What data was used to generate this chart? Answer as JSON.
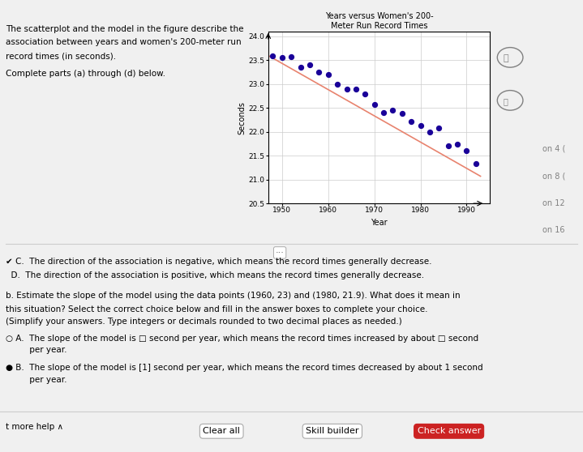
{
  "title": "Years versus Women's 200-\nMeter Run Record Times",
  "xlabel": "Year",
  "ylabel": "Seconds",
  "xlim": [
    1947,
    1995
  ],
  "ylim": [
    20.5,
    24.1
  ],
  "yticks": [
    20.5,
    21,
    21.5,
    22,
    22.5,
    23,
    23.5,
    24
  ],
  "xticks": [
    1950,
    1960,
    1970,
    1980,
    1990
  ],
  "scatter_x": [
    1948,
    1952,
    1956,
    1960,
    1964,
    1968,
    1972,
    1976,
    1980,
    1984,
    1988,
    1992,
    1950,
    1954,
    1958,
    1962,
    1966,
    1970,
    1974,
    1978,
    1982,
    1986,
    1990
  ],
  "scatter_y": [
    23.6,
    23.58,
    23.4,
    23.2,
    22.9,
    22.8,
    22.4,
    22.38,
    22.13,
    22.08,
    21.74,
    21.34,
    23.55,
    23.35,
    23.25,
    23.0,
    22.89,
    22.58,
    22.45,
    22.21,
    22.0,
    21.71,
    21.6
  ],
  "dot_color": "#1a0099",
  "line_color": "#e8836e",
  "line_x": [
    1947,
    1993
  ],
  "line_y": [
    23.6,
    21.07
  ],
  "plot_bg_color": "#ffffff",
  "page_bg_color": "#f0f0f0",
  "title_fontsize": 7,
  "axis_fontsize": 7,
  "tick_fontsize": 6.5,
  "dot_size": 18,
  "line_width": 1.2,
  "text_left_1": "The scatterplot and the model in the figure describe the",
  "text_left_2": "association between years and women's 200-meter run",
  "text_left_3": "record times (in seconds).",
  "text_left_4": "Complete parts (a) through (d) below.",
  "sidebar_labels": [
    "on 4 (",
    "on 8 (",
    "on 12",
    "on 16"
  ],
  "bottom_c": "✔ C.  The direction of the association is negative, which means the record times generally decrease.",
  "bottom_d": "  D.  The direction of the association is positive, which means the record times generally decrease.",
  "bottom_b_title": "b. Estimate the slope of the model using the data points (1960, 23) and (1980, 21.9). What does it mean in",
  "bottom_b_2": "this situation? Select the correct choice below and fill in the answer boxes to complete your choice.",
  "bottom_b_3": "(Simplify your answers. Type integers or decimals rounded to two decimal places as needed.)",
  "bottom_a": "○ A.  The slope of the model is □ second per year, which means the record times increased by about □ second",
  "bottom_a2": "         per year.",
  "bottom_b_ans": "● B.  The slope of the model is [1] second per year, which means the record times decreased by about 1 second",
  "bottom_b_ans2": "         per year.",
  "footer": "t more help ∧                         Clear all              Skill builder            Check answer"
}
